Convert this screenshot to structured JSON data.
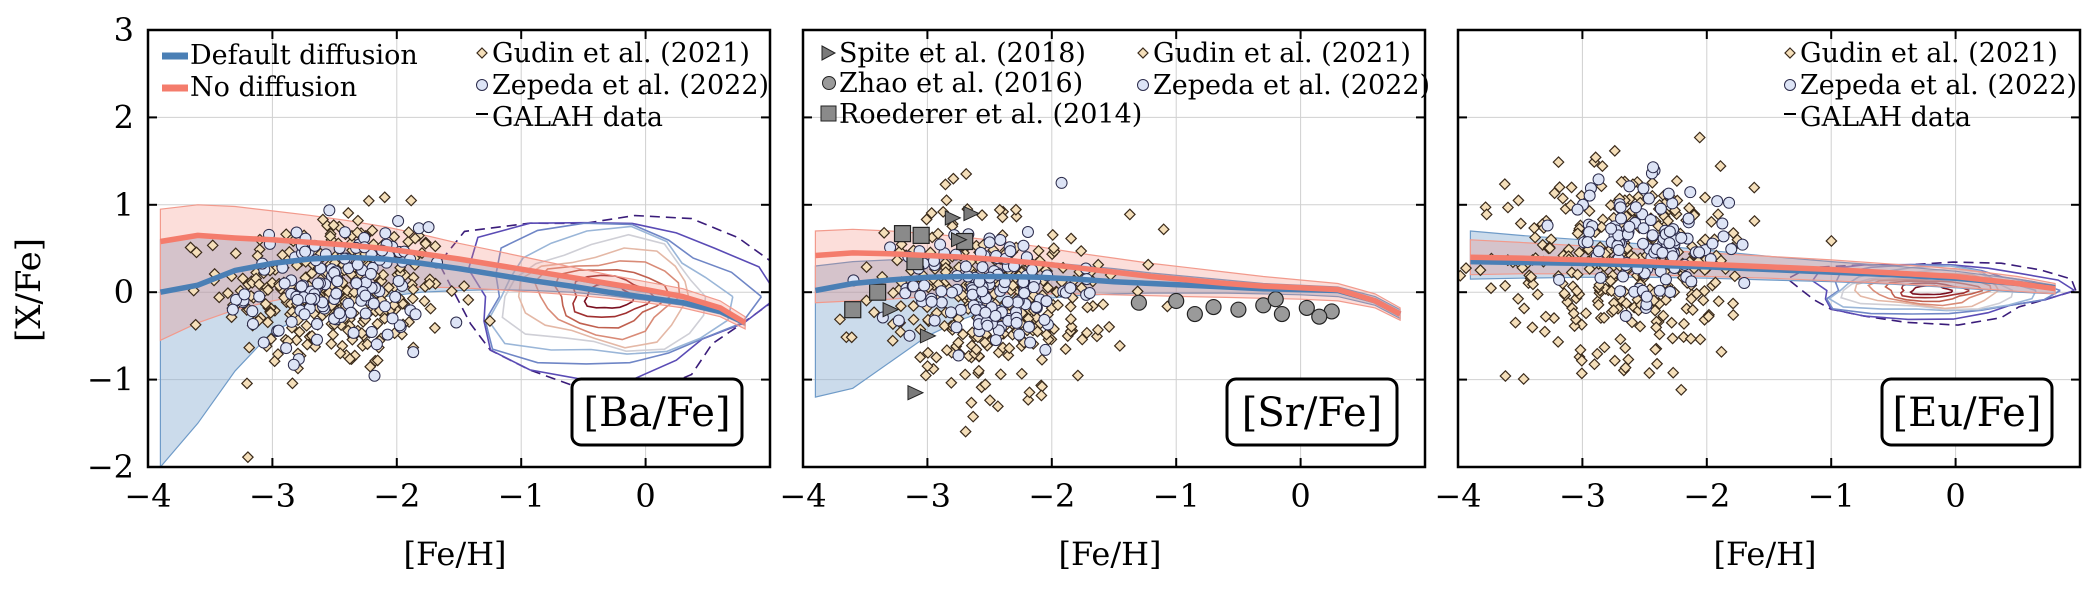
{
  "figure": {
    "ylabel": "[X/Fe]",
    "xlabel": "[Fe/H]"
  },
  "legend_colors": {
    "default_diffusion": "#4a7fb5",
    "no_diffusion": "#f47c6c",
    "gudin": "#f5dfba",
    "zepeda": "#dde4f6",
    "spite": "#7a7a7a",
    "zhao": "#9a9a9a",
    "roederer": "#8a8a8a"
  },
  "chart_data": [
    {
      "type": "line",
      "panel_label": "[Ba/Fe]",
      "xlabel": "[Fe/H]",
      "ylabel": "[X/Fe]",
      "xlim": [
        -4,
        1
      ],
      "ylim": [
        -2,
        3
      ],
      "xticks": [
        "−4",
        "−3",
        "−2",
        "−1",
        "0"
      ],
      "yticks": [
        "−2",
        "−1",
        "0",
        "1",
        "2",
        "3"
      ],
      "grid": true,
      "legend": [
        {
          "label": "Default diffusion",
          "kind": "line",
          "color": "#4a7fb5"
        },
        {
          "label": "No diffusion",
          "kind": "line",
          "color": "#f47c6c"
        },
        {
          "label": "Gudin et al. (2021)",
          "kind": "diamond"
        },
        {
          "label": "Zepeda et al. (2022)",
          "kind": "circle"
        },
        {
          "label": "GALAH data",
          "kind": "dash"
        }
      ],
      "series": [
        {
          "x": [
            -3.9,
            -3.6,
            -3.3,
            -3.0,
            -2.7,
            -2.4,
            -2.1,
            -1.8,
            -1.5,
            -1.2,
            -0.9,
            -0.6,
            -0.3,
            0.0,
            0.3,
            0.6,
            0.8
          ],
          "values": [
            0.0,
            0.08,
            0.25,
            0.33,
            0.38,
            0.4,
            0.38,
            0.33,
            0.27,
            0.2,
            0.13,
            0.07,
            0.0,
            -0.06,
            -0.12,
            -0.22,
            -0.35
          ],
          "lower": [
            -2.0,
            -1.5,
            -0.9,
            -0.45,
            -0.25,
            -0.12,
            -0.05,
            0.0,
            0.02,
            0.03,
            0.02,
            0.0,
            -0.04,
            -0.09,
            -0.15,
            -0.25,
            -0.38
          ],
          "upper": [
            0.6,
            0.65,
            0.6,
            0.58,
            0.56,
            0.54,
            0.5,
            0.44,
            0.37,
            0.3,
            0.22,
            0.15,
            0.07,
            0.0,
            -0.07,
            -0.18,
            -0.32
          ]
        },
        {
          "x": [
            -3.9,
            -3.6,
            -3.3,
            -3.0,
            -2.7,
            -2.4,
            -2.1,
            -1.8,
            -1.5,
            -1.2,
            -0.9,
            -0.6,
            -0.3,
            0.0,
            0.3,
            0.6,
            0.8
          ],
          "values": [
            0.58,
            0.65,
            0.62,
            0.6,
            0.57,
            0.54,
            0.5,
            0.44,
            0.38,
            0.31,
            0.24,
            0.17,
            0.1,
            0.03,
            -0.05,
            -0.18,
            -0.35
          ],
          "lower": [
            -0.55,
            -0.35,
            -0.2,
            -0.1,
            -0.02,
            0.02,
            0.05,
            0.06,
            0.05,
            0.03,
            0.0,
            -0.03,
            -0.07,
            -0.12,
            -0.18,
            -0.28,
            -0.42
          ],
          "upper": [
            0.95,
            1.0,
            0.98,
            0.93,
            0.88,
            0.82,
            0.75,
            0.66,
            0.56,
            0.47,
            0.38,
            0.29,
            0.2,
            0.12,
            0.04,
            -0.1,
            -0.28
          ]
        }
      ]
    },
    {
      "type": "line",
      "panel_label": "[Sr/Fe]",
      "xlabel": "[Fe/H]",
      "xlim": [
        -4,
        1
      ],
      "ylim": [
        -2,
        3
      ],
      "xticks": [
        "−4",
        "−3",
        "−2",
        "−1",
        "0"
      ],
      "grid": true,
      "legend": [
        {
          "label": "Spite et al. (2018)",
          "kind": "triangle"
        },
        {
          "label": "Zhao et al. (2016)",
          "kind": "filled-circle"
        },
        {
          "label": "Roederer et al. (2014)",
          "kind": "square"
        },
        {
          "label": "Gudin et al. (2021)",
          "kind": "diamond"
        },
        {
          "label": "Zepeda et al. (2022)",
          "kind": "circle"
        }
      ],
      "series": [
        {
          "x": [
            -3.9,
            -3.6,
            -3.3,
            -3.0,
            -2.7,
            -2.4,
            -2.1,
            -1.8,
            -1.5,
            -1.2,
            -0.9,
            -0.6,
            -0.3,
            0.0,
            0.3,
            0.6,
            0.8
          ],
          "values": [
            0.02,
            0.1,
            0.14,
            0.17,
            0.18,
            0.18,
            0.17,
            0.15,
            0.12,
            0.1,
            0.08,
            0.06,
            0.04,
            0.03,
            0.02,
            -0.1,
            -0.25
          ],
          "lower": [
            -1.2,
            -1.1,
            -0.8,
            -0.5,
            -0.3,
            -0.15,
            -0.08,
            -0.04,
            -0.02,
            -0.01,
            -0.01,
            -0.01,
            -0.02,
            -0.03,
            -0.05,
            -0.15,
            -0.3
          ],
          "upper": [
            0.3,
            0.35,
            0.37,
            0.38,
            0.38,
            0.37,
            0.35,
            0.31,
            0.27,
            0.22,
            0.18,
            0.14,
            0.1,
            0.08,
            0.06,
            -0.05,
            -0.2
          ]
        },
        {
          "x": [
            -3.9,
            -3.6,
            -3.3,
            -3.0,
            -2.7,
            -2.4,
            -2.1,
            -1.8,
            -1.5,
            -1.2,
            -0.9,
            -0.6,
            -0.3,
            0.0,
            0.3,
            0.6,
            0.8
          ],
          "values": [
            0.42,
            0.45,
            0.44,
            0.42,
            0.4,
            0.37,
            0.33,
            0.28,
            0.23,
            0.18,
            0.14,
            0.1,
            0.07,
            0.05,
            0.03,
            -0.1,
            -0.25
          ],
          "lower": [
            -0.12,
            -0.1,
            -0.08,
            -0.05,
            -0.03,
            -0.02,
            -0.02,
            -0.02,
            -0.03,
            -0.04,
            -0.05,
            -0.06,
            -0.07,
            -0.08,
            -0.1,
            -0.18,
            -0.32
          ],
          "upper": [
            0.7,
            0.72,
            0.7,
            0.67,
            0.63,
            0.58,
            0.52,
            0.45,
            0.39,
            0.33,
            0.28,
            0.23,
            0.18,
            0.14,
            0.1,
            -0.02,
            -0.18
          ]
        }
      ]
    },
    {
      "type": "line",
      "panel_label": "[Eu/Fe]",
      "xlabel": "[Fe/H]",
      "xlim": [
        -4,
        1
      ],
      "ylim": [
        -2,
        3
      ],
      "xticks": [
        "−4",
        "−3",
        "−2",
        "−1",
        "0"
      ],
      "grid": true,
      "legend": [
        {
          "label": "Gudin et al. (2021)",
          "kind": "diamond"
        },
        {
          "label": "Zepeda et al. (2022)",
          "kind": "circle"
        },
        {
          "label": "GALAH data",
          "kind": "dash"
        }
      ],
      "series": [
        {
          "x": [
            -3.9,
            -3.5,
            -3.0,
            -2.5,
            -2.0,
            -1.5,
            -1.0,
            -0.5,
            0.0,
            0.5,
            0.8
          ],
          "values": [
            0.35,
            0.34,
            0.33,
            0.31,
            0.29,
            0.26,
            0.23,
            0.2,
            0.16,
            0.1,
            0.05
          ],
          "lower": [
            0.15,
            0.16,
            0.17,
            0.17,
            0.16,
            0.14,
            0.12,
            0.09,
            0.05,
            0.0,
            -0.02
          ],
          "upper": [
            0.7,
            0.65,
            0.6,
            0.55,
            0.48,
            0.41,
            0.35,
            0.3,
            0.24,
            0.15,
            0.08
          ]
        },
        {
          "x": [
            -3.9,
            -3.5,
            -3.0,
            -2.5,
            -2.0,
            -1.5,
            -1.0,
            -0.5,
            0.0,
            0.5,
            0.8
          ],
          "values": [
            0.4,
            0.39,
            0.37,
            0.35,
            0.32,
            0.29,
            0.26,
            0.22,
            0.18,
            0.1,
            0.04
          ],
          "lower": [
            0.2,
            0.21,
            0.21,
            0.2,
            0.18,
            0.16,
            0.13,
            0.1,
            0.06,
            0.01,
            -0.02
          ],
          "upper": [
            0.6,
            0.57,
            0.53,
            0.49,
            0.45,
            0.41,
            0.37,
            0.32,
            0.27,
            0.18,
            0.1
          ]
        }
      ]
    }
  ]
}
